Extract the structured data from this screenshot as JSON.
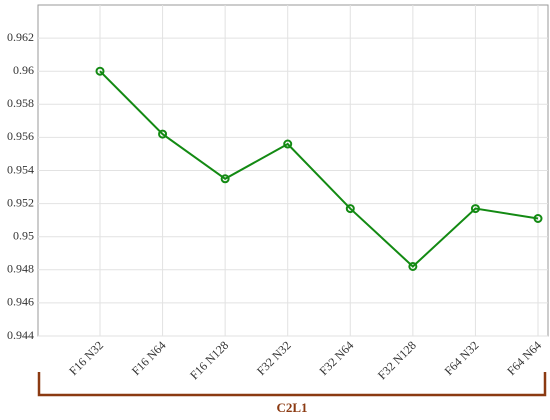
{
  "chart_data": {
    "type": "line",
    "categories": [
      "F16 N32",
      "F16 N64",
      "F16 N128",
      "F32 N32",
      "F32 N64",
      "F32 N128",
      "F64 N32",
      "F64 N64"
    ],
    "series": [
      {
        "name": "C2L1",
        "color": "#138a13",
        "values": [
          0.96,
          0.9562,
          0.9535,
          0.9556,
          0.9517,
          0.9482,
          0.9517,
          0.9511
        ]
      }
    ],
    "ylim": [
      0.944,
      0.964
    ],
    "yticks": [
      0.944,
      0.946,
      0.948,
      0.95,
      0.952,
      0.954,
      0.956,
      0.958,
      0.96,
      0.962
    ],
    "grid": true,
    "group_label": "C2L1",
    "group_color": "#8b3a12"
  }
}
